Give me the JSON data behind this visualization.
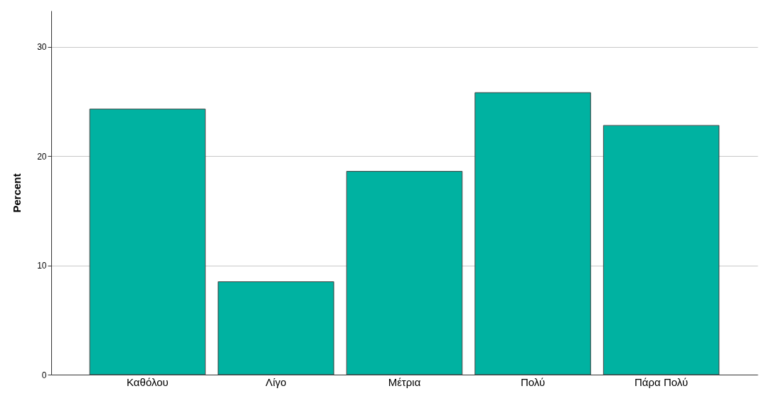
{
  "chart_data": {
    "type": "bar",
    "ylabel": "Percent",
    "categories": [
      "Καθόλου",
      "Λίγο",
      "Μέτρια",
      "Πολύ",
      "Πάρα Πολύ"
    ],
    "values": [
      24.3,
      8.5,
      18.6,
      25.8,
      22.8
    ],
    "color": "#00b2a1",
    "ylim": [
      0,
      33.3
    ],
    "yticks": [
      0,
      10,
      20,
      30
    ],
    "grid": "y"
  }
}
